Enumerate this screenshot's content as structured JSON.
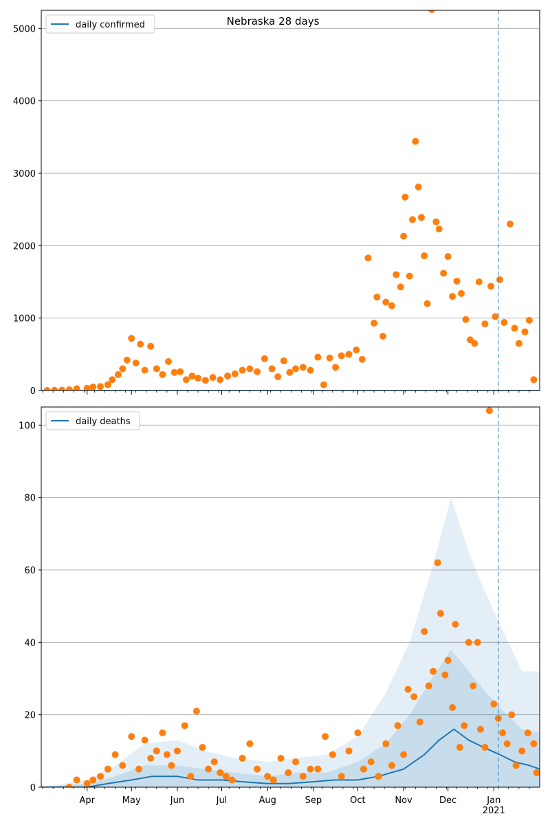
{
  "figure_title": "Nebraska 28 days",
  "colors": {
    "line": "#1f77b4",
    "points": "#ff7f0e",
    "band": "#1f77b4",
    "grid": "#b0b0b0",
    "vline": "#1f77b4"
  },
  "chart_data": [
    {
      "type": "scatter",
      "title": "Nebraska 28 days",
      "legend": [
        "daily confirmed"
      ],
      "legend_placement": "top-left",
      "grid": "horizontal",
      "x_range": [
        "2020-03-01",
        "2021-02-01"
      ],
      "ylim": [
        0,
        5250
      ],
      "yticks": [
        "0",
        "1000",
        "2000",
        "3000",
        "4000",
        "5000"
      ],
      "xtick_labels": [
        "Apr",
        "May",
        "Jun",
        "Jul",
        "Aug",
        "Sep",
        "Oct",
        "Nov",
        "Dec",
        "Jan",
        "2021"
      ],
      "reference_line_date": "2021-01-04",
      "series": [
        {
          "name": "daily confirmed",
          "kind": "line",
          "points": [
            [
              "2020-03-01",
              0
            ],
            [
              "2021-02-01",
              0
            ]
          ]
        },
        {
          "name": "",
          "kind": "scatter",
          "points": [
            [
              "2020-03-05",
              0
            ],
            [
              "2020-03-10",
              2
            ],
            [
              "2020-03-15",
              5
            ],
            [
              "2020-03-20",
              10
            ],
            [
              "2020-03-25",
              25
            ],
            [
              "2020-04-01",
              30
            ],
            [
              "2020-04-05",
              50
            ],
            [
              "2020-04-10",
              55
            ],
            [
              "2020-04-15",
              80
            ],
            [
              "2020-04-18",
              150
            ],
            [
              "2020-04-22",
              220
            ],
            [
              "2020-04-25",
              300
            ],
            [
              "2020-04-28",
              420
            ],
            [
              "2020-05-01",
              720
            ],
            [
              "2020-05-04",
              380
            ],
            [
              "2020-05-07",
              640
            ],
            [
              "2020-05-10",
              280
            ],
            [
              "2020-05-14",
              610
            ],
            [
              "2020-05-18",
              300
            ],
            [
              "2020-05-22",
              220
            ],
            [
              "2020-05-26",
              400
            ],
            [
              "2020-05-30",
              250
            ],
            [
              "2020-06-03",
              260
            ],
            [
              "2020-06-07",
              150
            ],
            [
              "2020-06-11",
              200
            ],
            [
              "2020-06-15",
              170
            ],
            [
              "2020-06-20",
              140
            ],
            [
              "2020-06-25",
              180
            ],
            [
              "2020-06-30",
              150
            ],
            [
              "2020-07-05",
              200
            ],
            [
              "2020-07-10",
              230
            ],
            [
              "2020-07-15",
              280
            ],
            [
              "2020-07-20",
              300
            ],
            [
              "2020-07-25",
              260
            ],
            [
              "2020-07-30",
              440
            ],
            [
              "2020-08-04",
              300
            ],
            [
              "2020-08-08",
              190
            ],
            [
              "2020-08-12",
              410
            ],
            [
              "2020-08-16",
              250
            ],
            [
              "2020-08-20",
              300
            ],
            [
              "2020-08-25",
              320
            ],
            [
              "2020-08-30",
              280
            ],
            [
              "2020-09-04",
              460
            ],
            [
              "2020-09-08",
              80
            ],
            [
              "2020-09-12",
              450
            ],
            [
              "2020-09-16",
              320
            ],
            [
              "2020-09-20",
              480
            ],
            [
              "2020-09-25",
              500
            ],
            [
              "2020-09-30",
              560
            ],
            [
              "2020-10-04",
              430
            ],
            [
              "2020-10-08",
              1830
            ],
            [
              "2020-10-12",
              930
            ],
            [
              "2020-10-14",
              1290
            ],
            [
              "2020-10-18",
              750
            ],
            [
              "2020-10-20",
              1220
            ],
            [
              "2020-10-24",
              1170
            ],
            [
              "2020-10-27",
              1600
            ],
            [
              "2020-10-30",
              1430
            ],
            [
              "2020-11-01",
              2130
            ],
            [
              "2020-11-02",
              2670
            ],
            [
              "2020-11-05",
              1580
            ],
            [
              "2020-11-07",
              2360
            ],
            [
              "2020-11-09",
              3440
            ],
            [
              "2020-11-11",
              2810
            ],
            [
              "2020-11-13",
              2390
            ],
            [
              "2020-11-15",
              1860
            ],
            [
              "2020-11-17",
              1200
            ],
            [
              "2020-11-20",
              5260
            ],
            [
              "2020-11-23",
              2330
            ],
            [
              "2020-11-25",
              2230
            ],
            [
              "2020-11-28",
              1620
            ],
            [
              "2020-12-01",
              1850
            ],
            [
              "2020-12-04",
              1300
            ],
            [
              "2020-12-07",
              1510
            ],
            [
              "2020-12-10",
              1340
            ],
            [
              "2020-12-13",
              980
            ],
            [
              "2020-12-16",
              700
            ],
            [
              "2020-12-19",
              650
            ],
            [
              "2020-12-22",
              1500
            ],
            [
              "2020-12-26",
              920
            ],
            [
              "2020-12-30",
              1440
            ],
            [
              "2021-01-02",
              1020
            ],
            [
              "2021-01-05",
              1530
            ],
            [
              "2021-01-08",
              940
            ],
            [
              "2021-01-12",
              2300
            ],
            [
              "2021-01-15",
              860
            ],
            [
              "2021-01-18",
              650
            ],
            [
              "2021-01-22",
              810
            ],
            [
              "2021-01-25",
              970
            ],
            [
              "2021-01-28",
              150
            ]
          ]
        }
      ]
    },
    {
      "type": "scatter",
      "title": "",
      "legend": [
        "daily deaths"
      ],
      "legend_placement": "top-left",
      "grid": "horizontal",
      "x_range": [
        "2020-03-01",
        "2021-02-01"
      ],
      "ylim": [
        0,
        105
      ],
      "yticks": [
        "0",
        "20",
        "40",
        "60",
        "80",
        "100"
      ],
      "xtick_labels": [
        "Apr",
        "May",
        "Jun",
        "Jul",
        "Aug",
        "Sep",
        "Oct",
        "Nov",
        "Dec",
        "Jan",
        "2021"
      ],
      "reference_line_date": "2021-01-04",
      "series": [
        {
          "name": "daily deaths",
          "kind": "line",
          "points": [
            [
              "2020-03-01",
              0
            ],
            [
              "2020-04-01",
              0
            ],
            [
              "2020-04-15",
              1
            ],
            [
              "2020-05-01",
              2
            ],
            [
              "2020-05-15",
              3
            ],
            [
              "2020-06-01",
              3
            ],
            [
              "2020-06-15",
              2
            ],
            [
              "2020-07-01",
              2
            ],
            [
              "2020-07-15",
              1.5
            ],
            [
              "2020-08-01",
              1
            ],
            [
              "2020-08-15",
              1
            ],
            [
              "2020-09-01",
              1.5
            ],
            [
              "2020-09-15",
              2
            ],
            [
              "2020-10-01",
              2
            ],
            [
              "2020-10-15",
              3
            ],
            [
              "2020-11-01",
              5
            ],
            [
              "2020-11-15",
              9
            ],
            [
              "2020-11-25",
              13
            ],
            [
              "2020-12-05",
              16
            ],
            [
              "2020-12-15",
              13
            ],
            [
              "2020-12-25",
              11
            ],
            [
              "2021-01-05",
              9
            ],
            [
              "2021-01-15",
              7
            ],
            [
              "2021-01-25",
              6
            ],
            [
              "2021-02-01",
              5
            ]
          ]
        },
        {
          "name": "",
          "kind": "band_outer",
          "points": [
            [
              "2020-03-01",
              0
            ],
            [
              "2020-04-01",
              2
            ],
            [
              "2020-04-20",
              6
            ],
            [
              "2020-05-10",
              12
            ],
            [
              "2020-06-01",
              13
            ],
            [
              "2020-06-20",
              10
            ],
            [
              "2020-07-10",
              8
            ],
            [
              "2020-08-01",
              7
            ],
            [
              "2020-08-20",
              8
            ],
            [
              "2020-09-10",
              9
            ],
            [
              "2020-10-01",
              14
            ],
            [
              "2020-10-20",
              26
            ],
            [
              "2020-11-05",
              40
            ],
            [
              "2020-11-20",
              60
            ],
            [
              "2020-12-03",
              80
            ],
            [
              "2020-12-15",
              65
            ],
            [
              "2020-12-25",
              55
            ],
            [
              "2021-01-05",
              45
            ],
            [
              "2021-01-20",
              32
            ],
            [
              "2021-02-01",
              32
            ]
          ]
        },
        {
          "name": "",
          "kind": "band_mid",
          "points": [
            [
              "2020-03-01",
              0
            ],
            [
              "2020-04-01",
              1
            ],
            [
              "2020-04-20",
              3
            ],
            [
              "2020-05-10",
              6
            ],
            [
              "2020-06-01",
              6
            ],
            [
              "2020-06-20",
              5
            ],
            [
              "2020-07-10",
              4
            ],
            [
              "2020-08-01",
              3
            ],
            [
              "2020-08-20",
              4
            ],
            [
              "2020-09-10",
              4
            ],
            [
              "2020-10-01",
              7
            ],
            [
              "2020-10-20",
              12
            ],
            [
              "2020-11-05",
              20
            ],
            [
              "2020-11-20",
              30
            ],
            [
              "2020-12-03",
              38
            ],
            [
              "2020-12-15",
              32
            ],
            [
              "2020-12-25",
              27
            ],
            [
              "2021-01-05",
              22
            ],
            [
              "2021-01-20",
              16
            ],
            [
              "2021-02-01",
              15
            ]
          ]
        },
        {
          "name": "",
          "kind": "scatter",
          "points": [
            [
              "2020-03-20",
              0
            ],
            [
              "2020-03-25",
              2
            ],
            [
              "2020-04-01",
              1
            ],
            [
              "2020-04-05",
              2
            ],
            [
              "2020-04-10",
              3
            ],
            [
              "2020-04-15",
              5
            ],
            [
              "2020-04-20",
              9
            ],
            [
              "2020-04-25",
              6
            ],
            [
              "2020-05-01",
              14
            ],
            [
              "2020-05-06",
              5
            ],
            [
              "2020-05-10",
              13
            ],
            [
              "2020-05-14",
              8
            ],
            [
              "2020-05-18",
              10
            ],
            [
              "2020-05-22",
              15
            ],
            [
              "2020-05-25",
              9
            ],
            [
              "2020-05-28",
              6
            ],
            [
              "2020-06-01",
              10
            ],
            [
              "2020-06-06",
              17
            ],
            [
              "2020-06-10",
              3
            ],
            [
              "2020-06-14",
              21
            ],
            [
              "2020-06-18",
              11
            ],
            [
              "2020-06-22",
              5
            ],
            [
              "2020-06-26",
              7
            ],
            [
              "2020-06-30",
              4
            ],
            [
              "2020-07-04",
              3
            ],
            [
              "2020-07-08",
              2
            ],
            [
              "2020-07-15",
              8
            ],
            [
              "2020-07-20",
              12
            ],
            [
              "2020-07-25",
              5
            ],
            [
              "2020-08-01",
              3
            ],
            [
              "2020-08-05",
              2
            ],
            [
              "2020-08-10",
              8
            ],
            [
              "2020-08-15",
              4
            ],
            [
              "2020-08-20",
              7
            ],
            [
              "2020-08-25",
              3
            ],
            [
              "2020-08-30",
              5
            ],
            [
              "2020-09-04",
              5
            ],
            [
              "2020-09-09",
              14
            ],
            [
              "2020-09-14",
              9
            ],
            [
              "2020-09-20",
              3
            ],
            [
              "2020-09-25",
              10
            ],
            [
              "2020-10-01",
              15
            ],
            [
              "2020-10-05",
              5
            ],
            [
              "2020-10-10",
              7
            ],
            [
              "2020-10-15",
              3
            ],
            [
              "2020-10-20",
              12
            ],
            [
              "2020-10-24",
              6
            ],
            [
              "2020-10-28",
              17
            ],
            [
              "2020-11-01",
              9
            ],
            [
              "2020-11-04",
              27
            ],
            [
              "2020-11-08",
              25
            ],
            [
              "2020-11-12",
              18
            ],
            [
              "2020-11-15",
              43
            ],
            [
              "2020-11-18",
              28
            ],
            [
              "2020-11-21",
              32
            ],
            [
              "2020-11-24",
              62
            ],
            [
              "2020-11-26",
              48
            ],
            [
              "2020-11-29",
              31
            ],
            [
              "2020-12-01",
              35
            ],
            [
              "2020-12-04",
              22
            ],
            [
              "2020-12-06",
              45
            ],
            [
              "2020-12-09",
              11
            ],
            [
              "2020-12-12",
              17
            ],
            [
              "2020-12-15",
              40
            ],
            [
              "2020-12-18",
              28
            ],
            [
              "2020-12-21",
              40
            ],
            [
              "2020-12-23",
              16
            ],
            [
              "2020-12-26",
              11
            ],
            [
              "2020-12-29",
              104
            ],
            [
              "2021-01-01",
              23
            ],
            [
              "2021-01-04",
              19
            ],
            [
              "2021-01-07",
              15
            ],
            [
              "2021-01-10",
              12
            ],
            [
              "2021-01-13",
              20
            ],
            [
              "2021-01-16",
              6
            ],
            [
              "2021-01-20",
              10
            ],
            [
              "2021-01-24",
              15
            ],
            [
              "2021-01-28",
              12
            ],
            [
              "2021-01-30",
              4
            ]
          ]
        }
      ]
    }
  ]
}
